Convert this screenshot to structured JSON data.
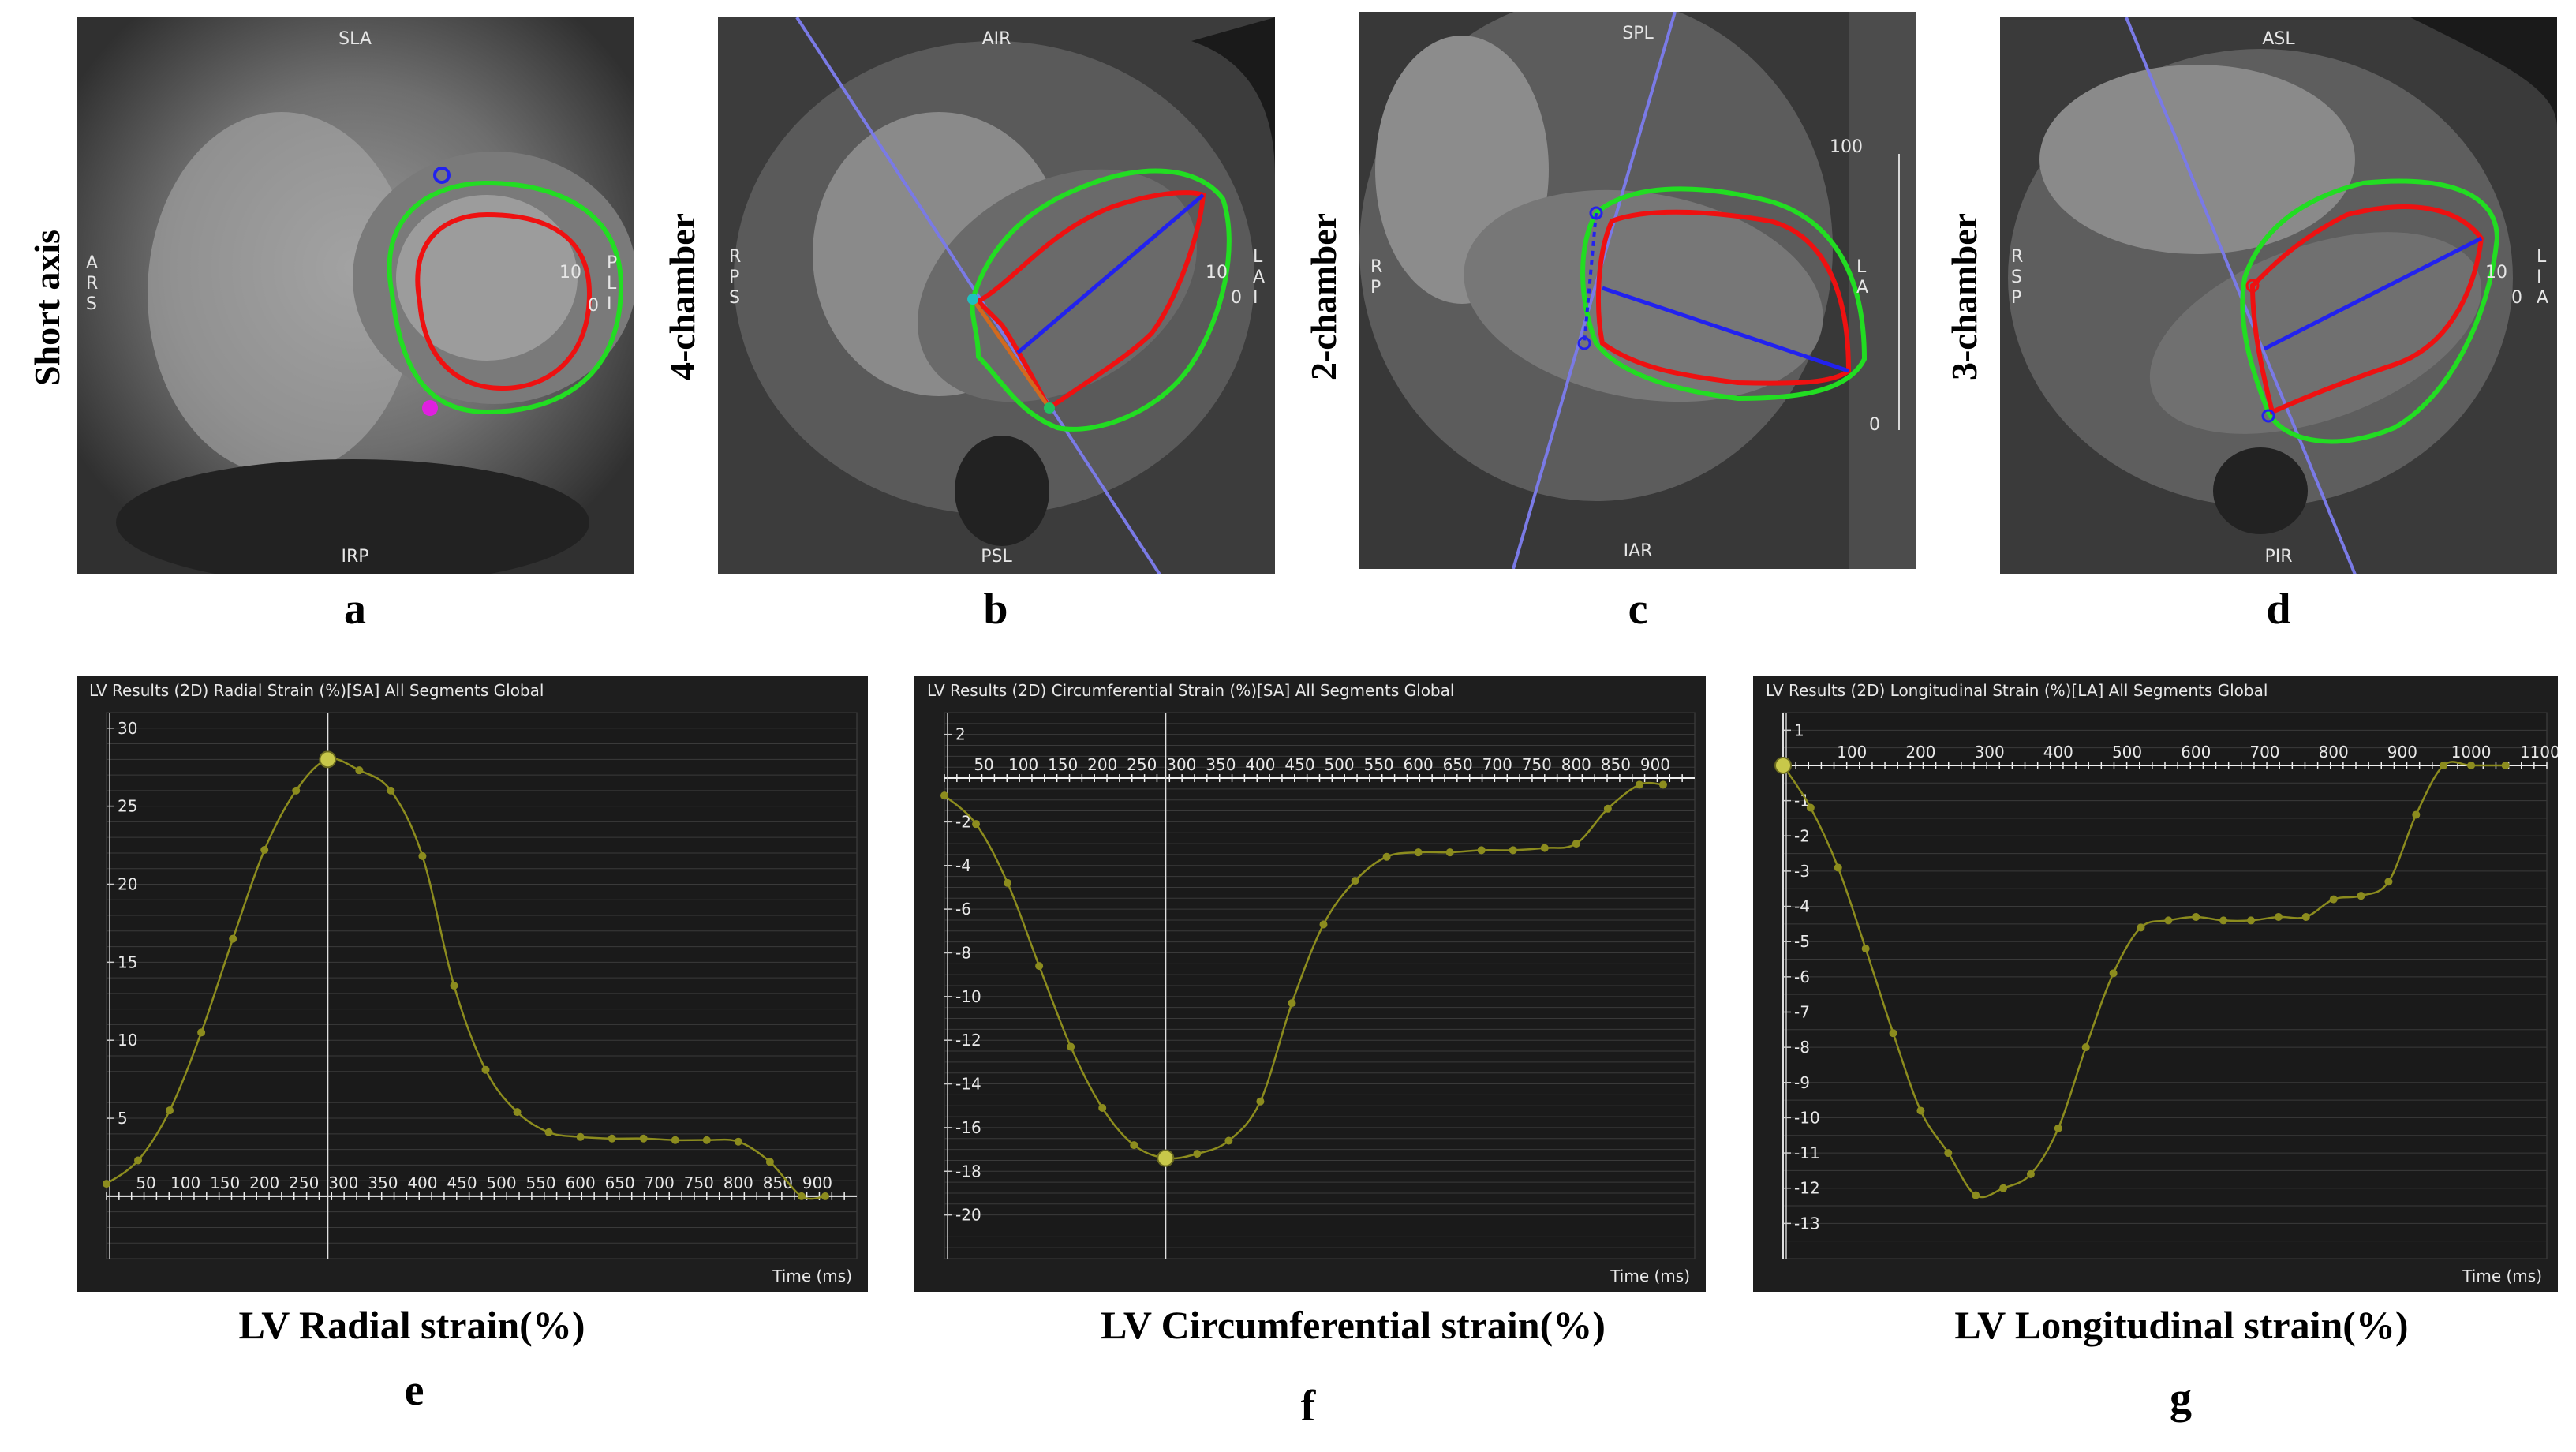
{
  "mri_panels": [
    {
      "id": "a",
      "side_label": "Short axis",
      "letter": "a",
      "orient": {
        "top": "SLA",
        "bottom": "IRP",
        "left": "A\nR\nS",
        "right": "P\nL\nI",
        "scale_top": "10",
        "scale_bottom": "0"
      }
    },
    {
      "id": "b",
      "side_label": "4-chamber",
      "letter": "b",
      "orient": {
        "top": "AIR",
        "bottom": "PSL",
        "left": "R\nP\nS",
        "right": "L\nA\nI",
        "scale_top": "10",
        "scale_bottom": "0"
      }
    },
    {
      "id": "c",
      "side_label": "2-chamber",
      "letter": "c",
      "orient": {
        "top": "SPL",
        "bottom": "IAR",
        "left": "R\nP",
        "right": "L\nA",
        "scale_top": "100",
        "scale_bottom": "0"
      }
    },
    {
      "id": "d",
      "side_label": "3-chamber",
      "letter": "d",
      "orient": {
        "top": "ASL",
        "bottom": "PIR",
        "left": "R\nS\nP",
        "right": "L\nI\nA",
        "scale_top": "10",
        "scale_bottom": "0"
      }
    }
  ],
  "colors": {
    "epicardial": "#22dd22",
    "endocardial": "#ee1111",
    "axis_line": "#7a7ae6",
    "long_axis": "#2222ee",
    "curve": "#8c8c1e",
    "marker": "#c8c84a",
    "cursor": "#e0e0e0",
    "grid": "#3a3a3a"
  },
  "chart_data": [
    {
      "id": "e",
      "letter": "e",
      "type": "line",
      "title": "LV Results (2D) Radial Strain (%)[SA] All Segments Global",
      "caption": "LV Radial strain(%)",
      "xlabel": "Time (ms)",
      "ylabel": "",
      "xlim": [
        0,
        950
      ],
      "ylim": [
        -4,
        31
      ],
      "xticks": [
        50,
        100,
        150,
        200,
        250,
        300,
        350,
        400,
        450,
        500,
        550,
        600,
        650,
        700,
        750,
        800,
        850,
        900
      ],
      "yticks": [
        5,
        10,
        15,
        20,
        25,
        30
      ],
      "x": [
        0,
        40,
        80,
        120,
        160,
        200,
        240,
        280,
        320,
        360,
        400,
        440,
        480,
        520,
        560,
        600,
        640,
        680,
        720,
        760,
        800,
        840,
        880,
        910
      ],
      "y": [
        0.8,
        2.3,
        5.5,
        10.5,
        16.5,
        22.2,
        26.0,
        28.0,
        27.3,
        26.0,
        21.8,
        13.5,
        8.1,
        5.4,
        4.1,
        3.8,
        3.7,
        3.7,
        3.6,
        3.6,
        3.5,
        2.2,
        0.0,
        0.0
      ],
      "cursor_x": 280,
      "cursor_y": 28.0
    },
    {
      "id": "f",
      "letter": "f",
      "type": "line",
      "title": "LV Results (2D) Circumferential Strain (%)[SA] All Segments Global",
      "caption": "LV Circumferential strain(%)",
      "xlabel": "Time (ms)",
      "ylabel": "",
      "xlim": [
        0,
        950
      ],
      "ylim": [
        -22,
        3
      ],
      "xticks": [
        50,
        100,
        150,
        200,
        250,
        300,
        350,
        400,
        450,
        500,
        550,
        600,
        650,
        700,
        750,
        800,
        850,
        900
      ],
      "yticks": [
        2,
        -2,
        -4,
        -6,
        -8,
        -10,
        -12,
        -14,
        -16,
        -18,
        -20
      ],
      "x": [
        0,
        40,
        80,
        120,
        160,
        200,
        240,
        280,
        320,
        360,
        400,
        440,
        480,
        520,
        560,
        600,
        640,
        680,
        720,
        760,
        800,
        840,
        880,
        910
      ],
      "y": [
        -0.8,
        -2.1,
        -4.8,
        -8.6,
        -12.3,
        -15.1,
        -16.8,
        -17.4,
        -17.2,
        -16.6,
        -14.8,
        -10.3,
        -6.7,
        -4.7,
        -3.6,
        -3.4,
        -3.4,
        -3.3,
        -3.3,
        -3.2,
        -3.0,
        -1.4,
        -0.3,
        -0.3
      ],
      "cursor_x": 280,
      "cursor_y": -17.4
    },
    {
      "id": "g",
      "letter": "g",
      "type": "line",
      "title": "LV Results (2D) Longitudinal Strain (%)[LA] All Segments Global",
      "caption": "LV Longitudinal strain(%)",
      "xlabel": "Time (ms)",
      "ylabel": "",
      "xlim": [
        0,
        1110
      ],
      "ylim": [
        -14,
        1.5
      ],
      "xticks": [
        100,
        200,
        300,
        400,
        500,
        600,
        700,
        800,
        900,
        1000,
        1100
      ],
      "yticks": [
        1,
        -1,
        -2,
        -3,
        -4,
        -5,
        -6,
        -7,
        -8,
        -9,
        -10,
        -11,
        -12,
        -13
      ],
      "x": [
        0,
        40,
        80,
        120,
        160,
        200,
        240,
        280,
        320,
        360,
        400,
        440,
        480,
        520,
        560,
        600,
        640,
        680,
        720,
        760,
        800,
        840,
        880,
        920,
        960,
        1000,
        1050
      ],
      "y": [
        0,
        -1.2,
        -2.9,
        -5.2,
        -7.6,
        -9.8,
        -11.0,
        -12.2,
        -12.0,
        -11.6,
        -10.3,
        -8.0,
        -5.9,
        -4.6,
        -4.4,
        -4.3,
        -4.4,
        -4.4,
        -4.3,
        -4.3,
        -3.8,
        -3.7,
        -3.3,
        -1.4,
        0,
        0,
        0
      ],
      "cursor_x": 0,
      "cursor_y": 0
    }
  ]
}
